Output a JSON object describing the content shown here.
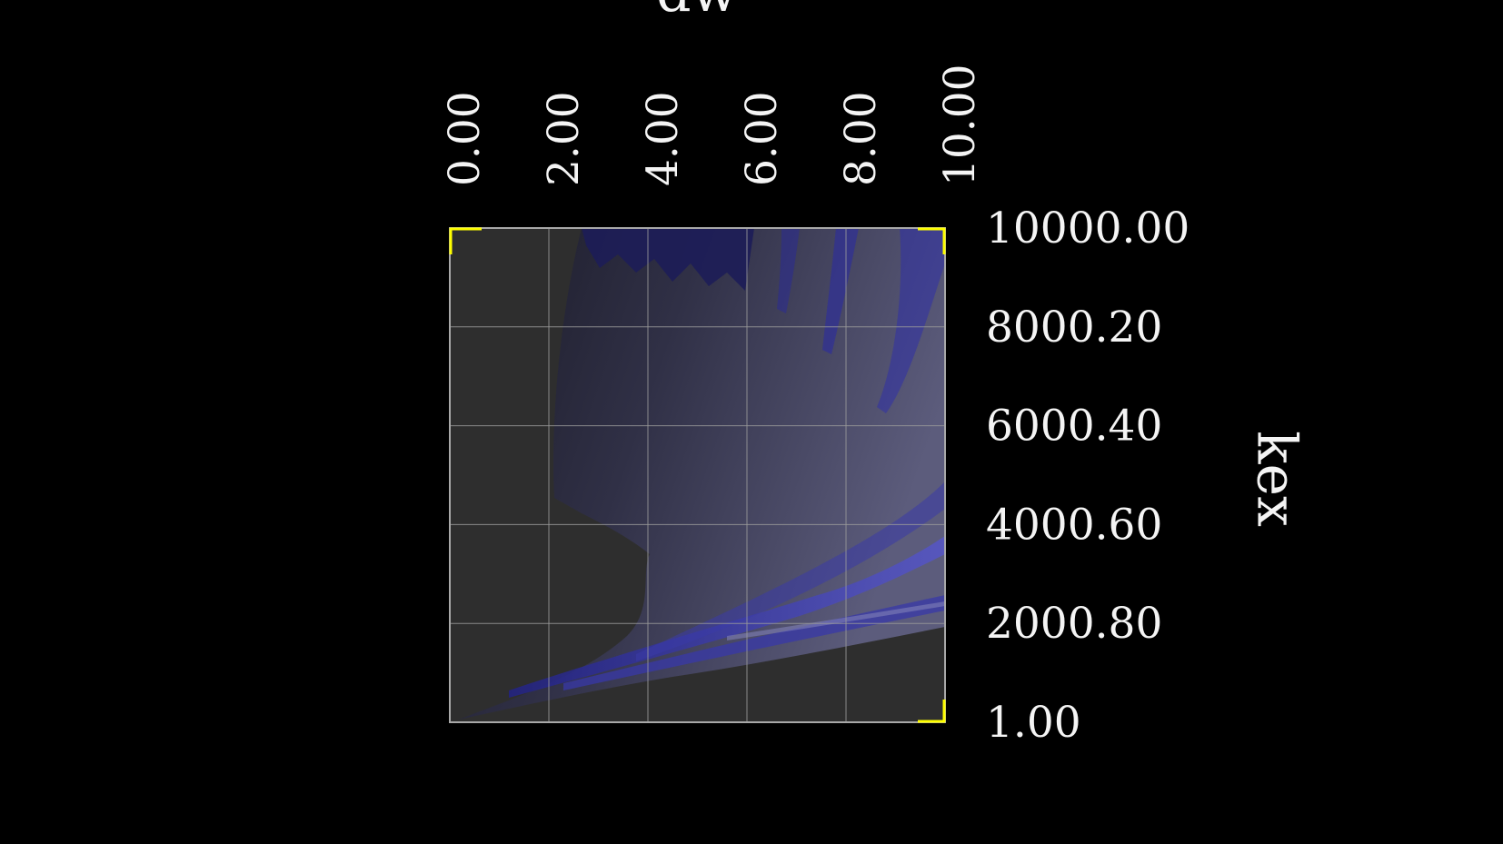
{
  "chart_data": {
    "type": "heatmap",
    "title": "",
    "xlabel": "dw",
    "ylabel": "kex",
    "x_ticks": [
      "0.00",
      "2.00",
      "4.00",
      "6.00",
      "8.00",
      "10.00"
    ],
    "y_ticks": [
      "10000.00",
      "8000.20",
      "6000.40",
      "4000.60",
      "2000.80",
      "1.00"
    ],
    "x_range": [
      0,
      10
    ],
    "y_range": [
      1,
      10000
    ],
    "grid": true,
    "colors": {
      "background": "#000000",
      "plot_face": "#2e2e2e",
      "surface_dark": "#20202c",
      "surface_light": "#5a5a78",
      "band_blue": "#2b2b9c",
      "corner_marker": "#ffff00",
      "grid_line": "#9a9a9a",
      "text": "#f4f4f4"
    }
  }
}
